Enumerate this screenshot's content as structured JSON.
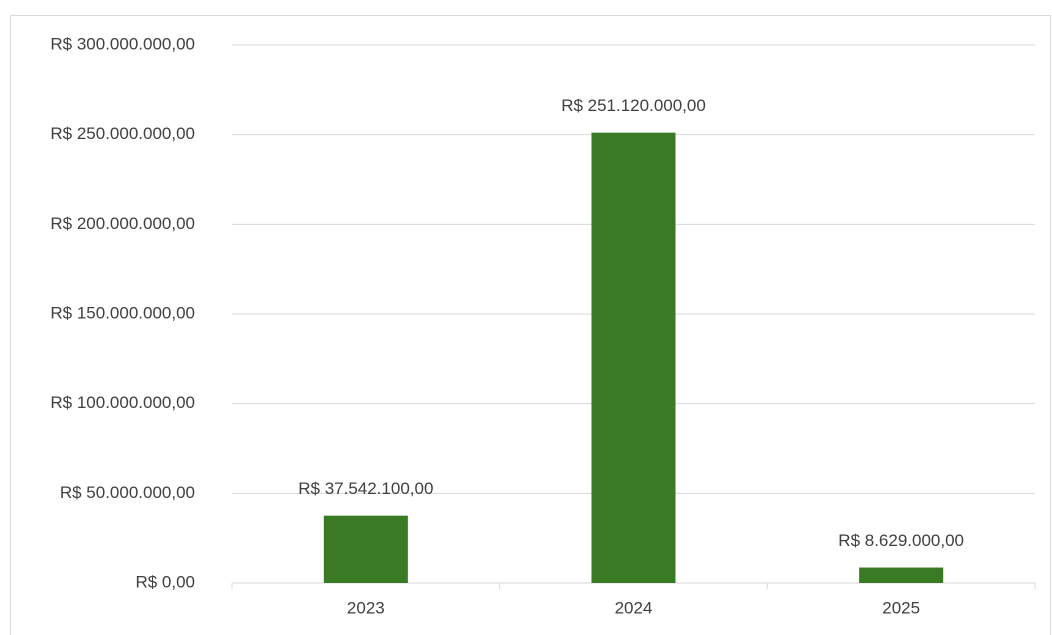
{
  "chart_data": {
    "type": "bar",
    "categories": [
      "2023",
      "2024",
      "2025"
    ],
    "values": [
      37542100,
      251120000,
      8629000
    ],
    "value_labels": [
      "R$ 37.542.100,00",
      "R$ 251.120.000,00",
      "R$ 8.629.000,00"
    ],
    "color": "#3b7a24",
    "ylim": [
      0,
      300000000
    ],
    "yticks": [
      {
        "value": 0,
        "label": "R$ 0,00"
      },
      {
        "value": 50000000,
        "label": "R$ 50.000.000,00"
      },
      {
        "value": 100000000,
        "label": "R$ 100.000.000,00"
      },
      {
        "value": 150000000,
        "label": "R$ 150.000.000,00"
      },
      {
        "value": 200000000,
        "label": "R$ 200.000.000,00"
      },
      {
        "value": 250000000,
        "label": "R$ 250.000.000,00"
      },
      {
        "value": 300000000,
        "label": "R$ 300.000.000,00"
      }
    ],
    "grid": true
  }
}
